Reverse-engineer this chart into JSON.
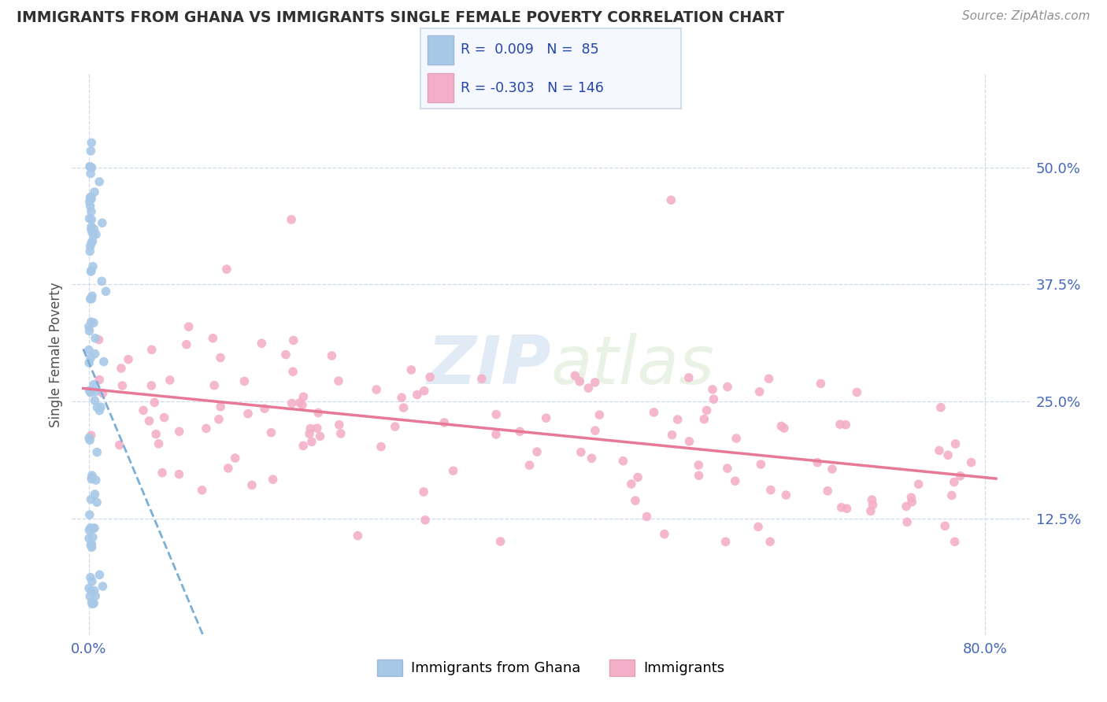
{
  "title": "IMMIGRANTS FROM GHANA VS IMMIGRANTS SINGLE FEMALE POVERTY CORRELATION CHART",
  "source": "Source: ZipAtlas.com",
  "ylabel": "Single Female Poverty",
  "watermark": "ZIPAtlas",
  "blue_color": "#a8c8e8",
  "pink_color": "#f4afc8",
  "blue_line_color": "#7ab0d8",
  "pink_line_color": "#e87898",
  "grid_color": "#c8d8e8",
  "background_color": "#ffffff",
  "title_color": "#303030",
  "source_color": "#909090",
  "tick_color": "#4466bb",
  "legend_border_color": "#c8d8e8",
  "legend_bg_color": "#f5f8ff"
}
